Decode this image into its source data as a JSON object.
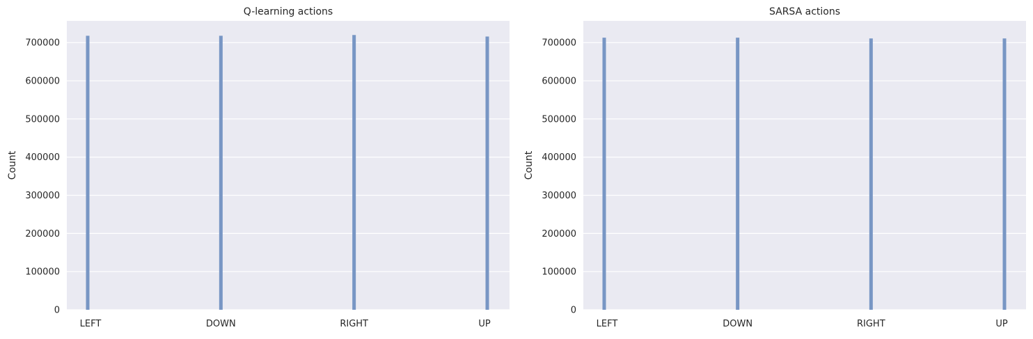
{
  "chart_data": [
    {
      "type": "bar",
      "title": "Q-learning actions",
      "xlabel": "",
      "ylabel": "Count",
      "categories": [
        "LEFT",
        "DOWN",
        "RIGHT",
        "UP"
      ],
      "values": [
        718000,
        718000,
        720000,
        716000
      ],
      "ylim": [
        0,
        757000
      ],
      "yticks": [
        0,
        100000,
        200000,
        300000,
        400000,
        500000,
        600000,
        700000
      ],
      "ytick_labels": [
        "0",
        "100000",
        "200000",
        "300000",
        "400000",
        "500000",
        "600000",
        "700000"
      ],
      "grid": true,
      "bar_color": "#7896c4",
      "bg_color": "#eaeaf2"
    },
    {
      "type": "bar",
      "title": "SARSA actions",
      "xlabel": "",
      "ylabel": "Count",
      "categories": [
        "LEFT",
        "DOWN",
        "RIGHT",
        "UP"
      ],
      "values": [
        713000,
        713000,
        711000,
        711000
      ],
      "ylim": [
        0,
        757000
      ],
      "yticks": [
        0,
        100000,
        200000,
        300000,
        400000,
        500000,
        600000,
        700000
      ],
      "ytick_labels": [
        "0",
        "100000",
        "200000",
        "300000",
        "400000",
        "500000",
        "600000",
        "700000"
      ],
      "grid": true,
      "bar_color": "#7896c4",
      "bg_color": "#eaeaf2"
    }
  ]
}
